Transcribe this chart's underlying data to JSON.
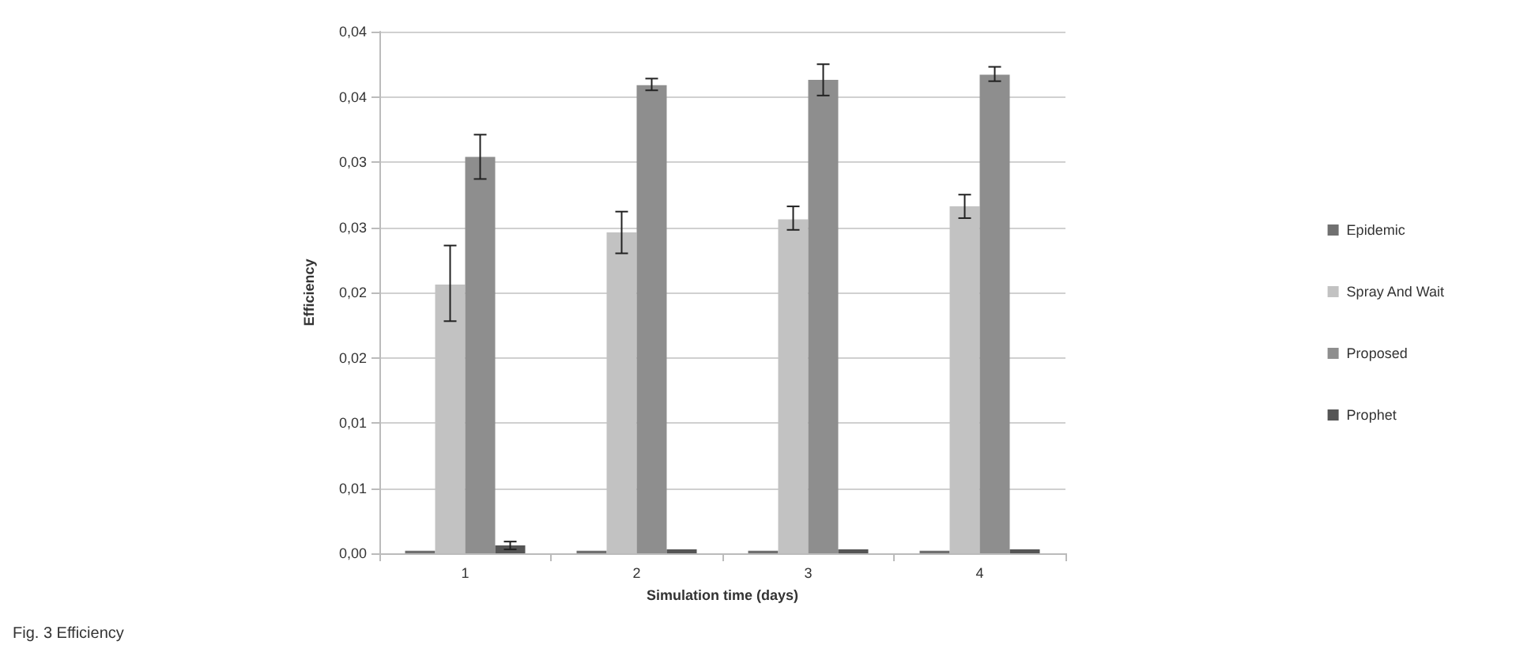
{
  "chart_data": {
    "type": "bar",
    "xlabel": "Simulation time (days)",
    "ylabel": "Efficiency",
    "categories": [
      "1",
      "2",
      "3",
      "4"
    ],
    "series": [
      {
        "name": "Epidemic",
        "color": "#707070",
        "values": [
          0.0002,
          0.0002,
          0.0002,
          0.0002
        ]
      },
      {
        "name": "Spray And Wait",
        "color": "#c2c2c2",
        "values": [
          0.0206,
          0.0246,
          0.0256,
          0.0266
        ],
        "errors": [
          [
            0.0178,
            0.0236
          ],
          [
            0.023,
            0.0262
          ],
          [
            0.0248,
            0.0266
          ],
          [
            0.0257,
            0.0275
          ]
        ]
      },
      {
        "name": "Proposed",
        "color": "#8e8e8e",
        "values": [
          0.0304,
          0.0359,
          0.0363,
          0.0367
        ],
        "errors": [
          [
            0.0287,
            0.0321
          ],
          [
            0.0355,
            0.0364
          ],
          [
            0.0351,
            0.0375
          ],
          [
            0.0362,
            0.0373
          ]
        ]
      },
      {
        "name": "Prophet",
        "color": "#555555",
        "values": [
          0.0006,
          0.0003,
          0.0003,
          0.0003
        ],
        "errors": [
          [
            0.0003,
            0.0009
          ],
          null,
          null,
          null
        ]
      }
    ],
    "ylim": [
      0,
      0.04
    ],
    "yticks": [
      {
        "value": 0,
        "label": "0,00"
      },
      {
        "value": 0.005,
        "label": "0,01"
      },
      {
        "value": 0.01,
        "label": "0,01"
      },
      {
        "value": 0.015,
        "label": "0,02"
      },
      {
        "value": 0.02,
        "label": "0,02"
      },
      {
        "value": 0.025,
        "label": "0,03"
      },
      {
        "value": 0.03,
        "label": "0,03"
      },
      {
        "value": 0.035,
        "label": "0,04"
      },
      {
        "value": 0.04,
        "label": "0,04"
      }
    ],
    "grid": "y",
    "legend": "right",
    "annotations": [
      "Fig. 3 Efficiency"
    ]
  }
}
